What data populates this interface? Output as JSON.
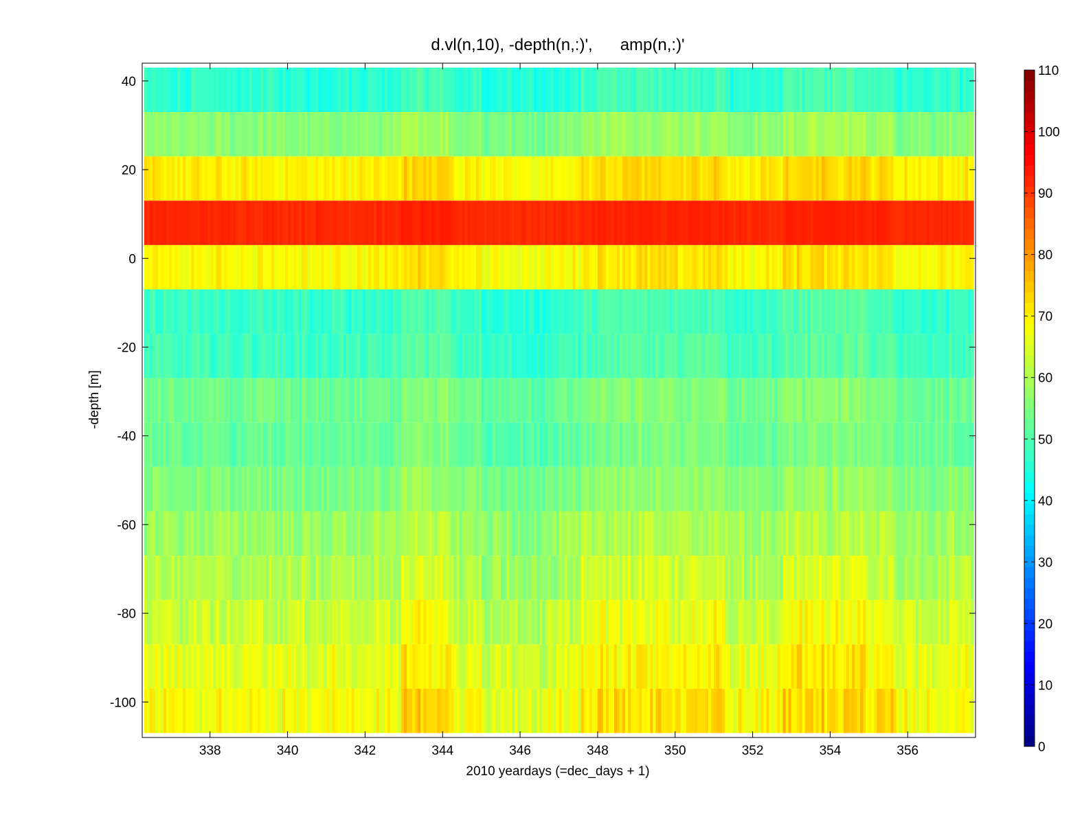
{
  "chart_data": {
    "type": "heatmap",
    "title": "d.vl(n,10), -depth(n,:)',      amp(n,:)'",
    "xlabel": "2010 yeardays (=dec_days + 1)",
    "ylabel": "-depth [m]",
    "xlim": [
      336.25,
      357.75
    ],
    "ylim": [
      -108,
      44
    ],
    "x_ticks": [
      338,
      340,
      342,
      344,
      346,
      348,
      350,
      352,
      354,
      356
    ],
    "y_ticks": [
      40,
      20,
      0,
      -20,
      -40,
      -60,
      -80,
      -100
    ],
    "colorbar": {
      "colormap": "jet",
      "clim": [
        0,
        110
      ],
      "ticks": [
        0,
        10,
        20,
        30,
        40,
        50,
        60,
        70,
        80,
        90,
        100,
        110
      ]
    },
    "x_range": [
      336.3,
      357.7
    ],
    "bin_depths": [
      38,
      28,
      18,
      8,
      -2,
      -12,
      -22,
      -32,
      -42,
      -52,
      -62,
      -72,
      -82,
      -92,
      -102
    ],
    "bin_mean_amp": [
      46,
      56,
      70,
      92,
      69,
      47,
      48,
      53,
      52,
      55,
      58,
      60,
      63,
      66,
      68
    ],
    "grid": false
  }
}
